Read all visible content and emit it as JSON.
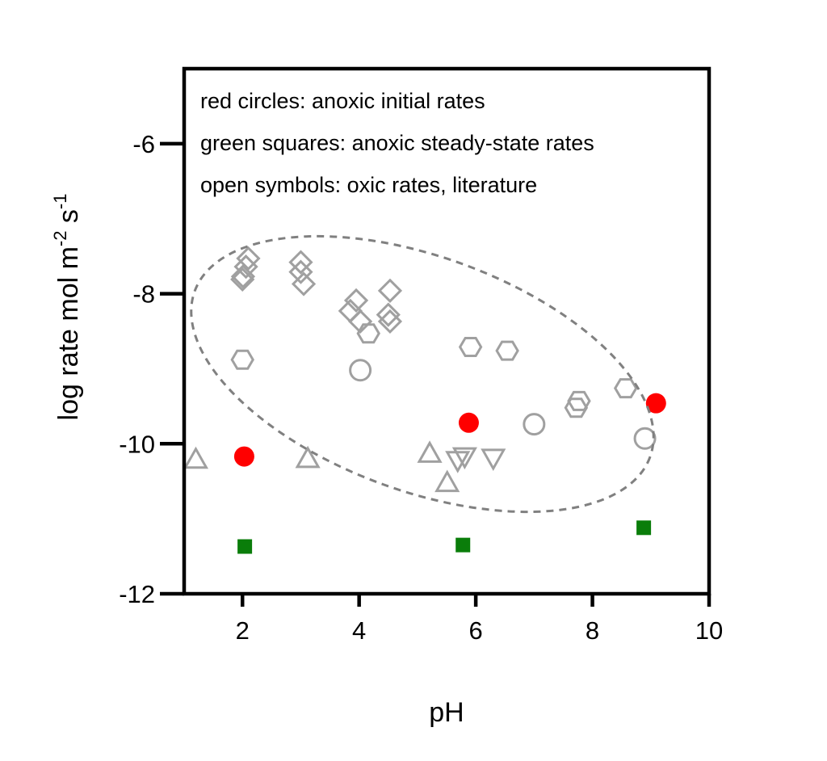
{
  "chart_data": {
    "type": "scatter",
    "title": "",
    "xlabel": "pH",
    "ylabel": "log rate mol m",
    "ylabel_sup1": "-2",
    "ylabel_mid": " s",
    "ylabel_sup2": "-1",
    "xlim": [
      1,
      10
    ],
    "ylim": [
      -12,
      -5
    ],
    "xticks": [
      2,
      4,
      6,
      8,
      10
    ],
    "yticks": [
      -6,
      -8,
      -10,
      -12
    ],
    "grid": false,
    "annotations": [
      "red circles: anoxic initial rates",
      "green squares: anoxic steady-state rates",
      "open symbols: oxic rates, literature"
    ],
    "colors": {
      "red": "#ff0000",
      "green": "#0a7d0a",
      "open": "#a0a0a0",
      "ellipse": "#808080"
    },
    "series": [
      {
        "name": "anoxic initial rates",
        "marker": "filled-circle",
        "color": "#ff0000",
        "points": [
          [
            2.03,
            -10.17
          ],
          [
            5.88,
            -9.72
          ],
          [
            9.09,
            -9.46
          ]
        ]
      },
      {
        "name": "anoxic steady-state rates",
        "marker": "filled-square",
        "color": "#0a7d0a",
        "points": [
          [
            2.04,
            -11.37
          ],
          [
            5.78,
            -11.35
          ],
          [
            8.88,
            -11.12
          ]
        ]
      },
      {
        "name": "oxic literature (diamond)",
        "marker": "diamond",
        "color": "#a0a0a0",
        "points": [
          [
            2.1,
            -7.53
          ],
          [
            2.06,
            -7.64
          ],
          [
            2.01,
            -7.77
          ],
          [
            2.0,
            -7.81
          ],
          [
            3.0,
            -7.58
          ],
          [
            3.0,
            -7.71
          ],
          [
            3.05,
            -7.87
          ],
          [
            3.95,
            -8.09
          ],
          [
            3.85,
            -8.23
          ],
          [
            4.02,
            -8.37
          ],
          [
            4.53,
            -7.96
          ],
          [
            4.5,
            -8.28
          ],
          [
            4.53,
            -8.37
          ]
        ]
      },
      {
        "name": "oxic literature (hexagon)",
        "marker": "hexagon",
        "color": "#a0a0a0",
        "points": [
          [
            2.0,
            -8.88
          ],
          [
            4.16,
            -8.53
          ],
          [
            5.91,
            -8.71
          ],
          [
            6.54,
            -8.76
          ],
          [
            7.77,
            -9.43
          ],
          [
            7.72,
            -9.52
          ],
          [
            8.57,
            -9.26
          ]
        ]
      },
      {
        "name": "oxic literature (circle)",
        "marker": "circle",
        "color": "#a0a0a0",
        "points": [
          [
            4.02,
            -9.02
          ],
          [
            7.0,
            -9.74
          ],
          [
            8.9,
            -9.93
          ]
        ]
      },
      {
        "name": "oxic literature (triangle up)",
        "marker": "triangle-up",
        "color": "#a0a0a0",
        "points": [
          [
            1.2,
            -10.21
          ],
          [
            3.12,
            -10.2
          ],
          [
            5.21,
            -10.13
          ],
          [
            5.51,
            -10.52
          ]
        ]
      },
      {
        "name": "oxic literature (triangle down)",
        "marker": "triangle-down",
        "color": "#a0a0a0",
        "points": [
          [
            5.81,
            -10.17
          ],
          [
            5.69,
            -10.22
          ],
          [
            6.3,
            -10.19
          ]
        ]
      }
    ]
  }
}
